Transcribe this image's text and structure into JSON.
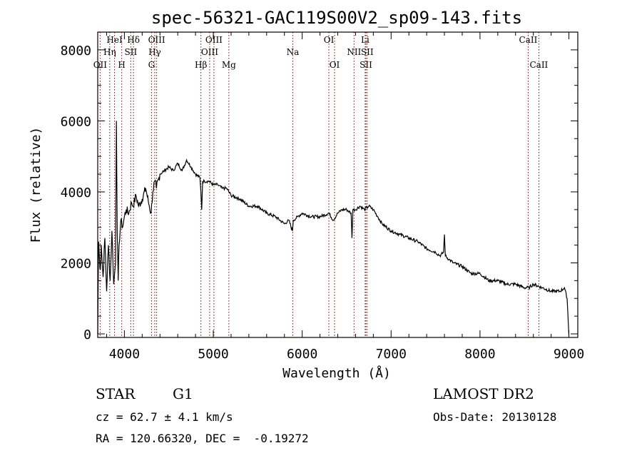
{
  "chart_data": {
    "type": "line",
    "title": "spec-56321-GAC119S00V2_sp09-143.fits",
    "xlabel": "Wavelength (Å)",
    "ylabel": "Flux (relative)",
    "xlim": [
      3700,
      9100
    ],
    "ylim": [
      -100,
      8500
    ],
    "xticks": [
      4000,
      5000,
      6000,
      7000,
      8000,
      9000
    ],
    "yticks": [
      0,
      2000,
      4000,
      6000,
      8000
    ],
    "grid": false,
    "series": [
      {
        "x": [
          3700,
          3710,
          3720,
          3730,
          3740,
          3760,
          3780,
          3800,
          3820,
          3840,
          3860,
          3880,
          3900,
          3910,
          3920,
          3930,
          3940,
          3960,
          3980,
          4000,
          4020,
          4050,
          4080,
          4100,
          4130,
          4160,
          4200,
          4240,
          4280,
          4300,
          4320,
          4340,
          4360,
          4400,
          4450,
          4500,
          4550,
          4600,
          4650,
          4700,
          4750,
          4800,
          4850,
          4860,
          4870,
          4880,
          4900,
          4950,
          5000,
          5050,
          5100,
          5150,
          5200,
          5300,
          5400,
          5500,
          5600,
          5700,
          5800,
          5850,
          5890,
          5900,
          5950,
          6000,
          6100,
          6200,
          6300,
          6350,
          6400,
          6450,
          6500,
          6550,
          6560,
          6570,
          6600,
          6650,
          6700,
          6750,
          6800,
          6850,
          6900,
          7000,
          7100,
          7200,
          7300,
          7400,
          7500,
          7550,
          7590,
          7600,
          7610,
          7650,
          7700,
          7800,
          7900,
          8000,
          8100,
          8200,
          8300,
          8400,
          8500,
          8550,
          8600,
          8700,
          8800,
          8900,
          8950,
          8980,
          9000
        ],
        "y": [
          0,
          2600,
          2100,
          1800,
          2500,
          1600,
          2700,
          1200,
          2500,
          1500,
          2900,
          1400,
          2000,
          6000,
          2800,
          1500,
          2500,
          3200,
          3000,
          3300,
          3500,
          3400,
          3700,
          3600,
          3900,
          3600,
          3800,
          4100,
          3600,
          3400,
          4000,
          4300,
          4100,
          4500,
          4600,
          4700,
          4600,
          4800,
          4600,
          4900,
          4700,
          4500,
          4400,
          4000,
          3500,
          4300,
          4300,
          4300,
          4200,
          4200,
          4100,
          4100,
          3900,
          3800,
          3600,
          3600,
          3400,
          3300,
          3100,
          3200,
          2900,
          3200,
          3300,
          3400,
          3300,
          3300,
          3400,
          3200,
          3400,
          3500,
          3500,
          3400,
          2700,
          3500,
          3500,
          3600,
          3500,
          3600,
          3500,
          3300,
          3100,
          2900,
          2800,
          2700,
          2600,
          2400,
          2300,
          2200,
          2300,
          2800,
          2200,
          2100,
          2000,
          1900,
          1700,
          1700,
          1500,
          1500,
          1400,
          1400,
          1300,
          1300,
          1400,
          1300,
          1200,
          1200,
          1300,
          1000,
          -50
        ]
      }
    ],
    "line_markers": [
      {
        "label": "OII",
        "x": 3727,
        "row": 3
      },
      {
        "label": "Hη",
        "x": 3835,
        "row": 2
      },
      {
        "label": "HeI",
        "x": 3889,
        "row": 1
      },
      {
        "label": "H",
        "x": 3970,
        "row": 3
      },
      {
        "label": "SII",
        "x": 4072,
        "row": 2
      },
      {
        "label": "Hδ",
        "x": 4102,
        "row": 1
      },
      {
        "label": "G",
        "x": 4305,
        "row": 3
      },
      {
        "label": "Hγ",
        "x": 4341,
        "row": 2
      },
      {
        "label": "OIII",
        "x": 4363,
        "row": 1
      },
      {
        "label": "Hβ",
        "x": 4861,
        "row": 3
      },
      {
        "label": "OIII",
        "x": 4959,
        "row": 2
      },
      {
        "label": "OIII",
        "x": 5007,
        "row": 1
      },
      {
        "label": "Mg",
        "x": 5175,
        "row": 3
      },
      {
        "label": "Na",
        "x": 5894,
        "row": 2
      },
      {
        "label": "OI",
        "x": 6300,
        "row": 1
      },
      {
        "label": "OI",
        "x": 6364,
        "row": 3
      },
      {
        "label": "NII",
        "x": 6583,
        "row": 2
      },
      {
        "label": "Li",
        "x": 6708,
        "row": 1
      },
      {
        "label": "SII",
        "x": 6717,
        "row": 3
      },
      {
        "label": "SII",
        "x": 6731,
        "row": 2
      },
      {
        "label": "CaII",
        "x": 8542,
        "row": 1
      },
      {
        "label": "CaII",
        "x": 8662,
        "row": 3
      }
    ]
  },
  "info": {
    "object_class": "STAR",
    "subclass": "G1",
    "survey": "LAMOST DR2",
    "redshift": "cz = 62.7 ± 4.1 km/s",
    "obs_date": "Obs-Date: 20130128",
    "coords": "RA = 120.66320, DEC =  -0.19272"
  },
  "colors": {
    "axes": "#000000",
    "spectrum": "#000000",
    "marker_line": "#8b0000"
  }
}
